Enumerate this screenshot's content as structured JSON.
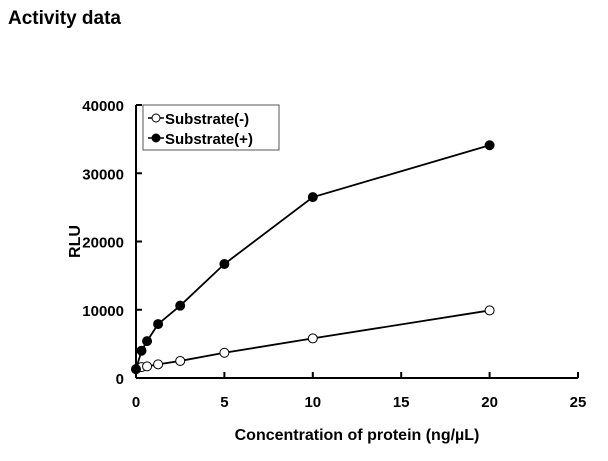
{
  "page_title": "Activity data",
  "chart_data": {
    "type": "line",
    "title": "",
    "xlabel": "Concentration of protein (ng/µL)",
    "ylabel": "RLU",
    "xlim": [
      0,
      25
    ],
    "ylim": [
      0,
      40000
    ],
    "xticks": [
      0,
      5,
      10,
      15,
      20,
      25
    ],
    "yticks": [
      0,
      10000,
      20000,
      30000,
      40000
    ],
    "grid": false,
    "legend_position": "top-left",
    "x": [
      0,
      0.3125,
      0.625,
      1.25,
      2.5,
      5,
      10,
      20
    ],
    "series": [
      {
        "name": "Substrate(-)",
        "marker": "open-circle",
        "values": [
          1300,
          1600,
          1700,
          2000,
          2500,
          3700,
          5800,
          9900
        ]
      },
      {
        "name": "Substrate(+)",
        "marker": "filled-circle",
        "values": [
          1300,
          4000,
          5400,
          7900,
          10600,
          16700,
          26500,
          34100
        ]
      }
    ]
  }
}
